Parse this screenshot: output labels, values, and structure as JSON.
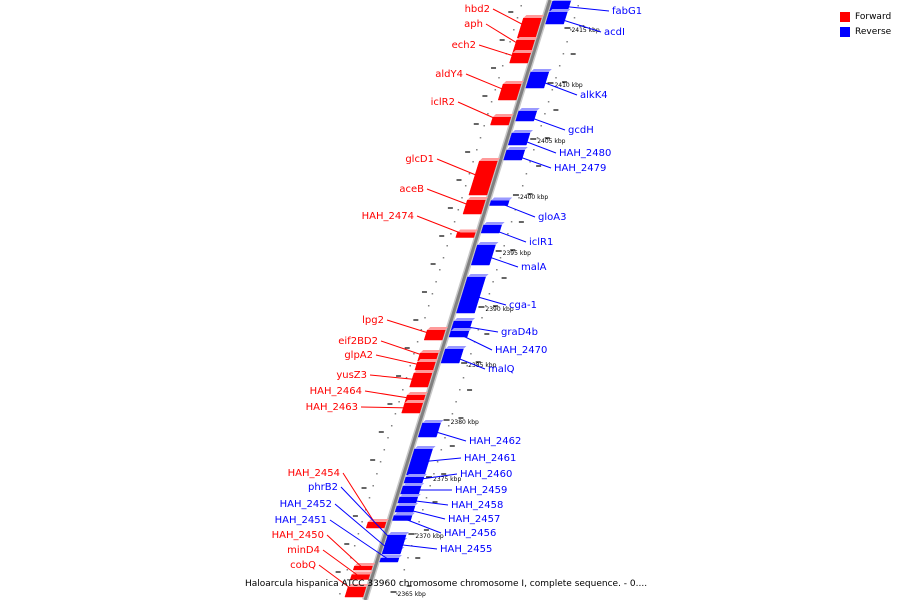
{
  "legend": {
    "items": [
      {
        "label": "Forward",
        "color": "#ff0000"
      },
      {
        "label": "Reverse",
        "color": "#0000ff"
      }
    ]
  },
  "caption": "Haloarcula hispanica ATCC 33960 chromosome chromosome I, complete sequence. - 0....",
  "colors": {
    "forward": "#ff0000",
    "reverse": "#0000ff",
    "axis": "#808080",
    "tick": "#000000"
  },
  "scale_labels": [
    "2415 kbp",
    "2410 kbp",
    "2405 kbp",
    "2400 kbp",
    "2395 kbp",
    "2390 kbp",
    "2385 kbp",
    "2380 kbp",
    "2375 kbp",
    "2370 kbp",
    "2365 kbp"
  ],
  "genes": [
    {
      "name": "hbd2",
      "strand": "forward"
    },
    {
      "name": "aph",
      "strand": "forward"
    },
    {
      "name": "ech2",
      "strand": "forward"
    },
    {
      "name": "aldY4",
      "strand": "forward"
    },
    {
      "name": "iclR2",
      "strand": "forward"
    },
    {
      "name": "glcD1",
      "strand": "forward"
    },
    {
      "name": "aceB",
      "strand": "forward"
    },
    {
      "name": "HAH_2474",
      "strand": "forward"
    },
    {
      "name": "lpg2",
      "strand": "forward"
    },
    {
      "name": "eif2BD2",
      "strand": "forward"
    },
    {
      "name": "glpA2",
      "strand": "forward"
    },
    {
      "name": "yusZ3",
      "strand": "forward"
    },
    {
      "name": "HAH_2464",
      "strand": "forward"
    },
    {
      "name": "HAH_2463",
      "strand": "forward"
    },
    {
      "name": "HAH_2454",
      "strand": "forward"
    },
    {
      "name": "phrB2",
      "strand": "reverse"
    },
    {
      "name": "HAH_2452",
      "strand": "reverse"
    },
    {
      "name": "HAH_2451",
      "strand": "reverse"
    },
    {
      "name": "HAH_2450",
      "strand": "forward"
    },
    {
      "name": "minD4",
      "strand": "forward"
    },
    {
      "name": "cobQ",
      "strand": "forward"
    },
    {
      "name": "fabG1",
      "strand": "reverse"
    },
    {
      "name": "acdI",
      "strand": "reverse"
    },
    {
      "name": "alkK4",
      "strand": "reverse"
    },
    {
      "name": "gcdH",
      "strand": "reverse"
    },
    {
      "name": "HAH_2480",
      "strand": "reverse"
    },
    {
      "name": "HAH_2479",
      "strand": "reverse"
    },
    {
      "name": "gloA3",
      "strand": "reverse"
    },
    {
      "name": "iclR1",
      "strand": "reverse"
    },
    {
      "name": "malA",
      "strand": "reverse"
    },
    {
      "name": "cga-1",
      "strand": "reverse"
    },
    {
      "name": "graD4b",
      "strand": "reverse"
    },
    {
      "name": "HAH_2470",
      "strand": "reverse"
    },
    {
      "name": "malQ",
      "strand": "reverse"
    },
    {
      "name": "HAH_2462",
      "strand": "reverse"
    },
    {
      "name": "HAH_2461",
      "strand": "reverse"
    },
    {
      "name": "HAH_2460",
      "strand": "reverse"
    },
    {
      "name": "HAH_2459",
      "strand": "reverse"
    },
    {
      "name": "HAH_2458",
      "strand": "reverse"
    },
    {
      "name": "HAH_2457",
      "strand": "reverse"
    },
    {
      "name": "HAH_2456",
      "strand": "reverse"
    },
    {
      "name": "HAH_2455",
      "strand": "reverse"
    }
  ]
}
